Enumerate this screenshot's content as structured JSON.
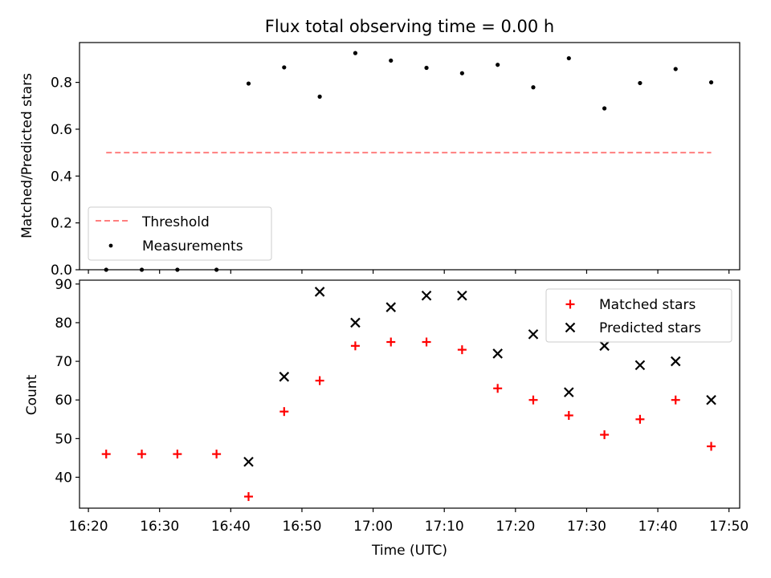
{
  "chart_data": [
    {
      "type": "scatter",
      "title": "Flux total observing time = 0.00 h",
      "xlabel": "",
      "ylabel": "Matched/Predicted stars",
      "ylim": [
        0,
        0.97
      ],
      "yticks": [
        "0.0",
        "0.2",
        "0.4",
        "0.6",
        "0.8"
      ],
      "grid": false,
      "legend_position": "lower-left",
      "threshold": {
        "name": "Threshold",
        "color": "#ff7f7f",
        "style": "dashed",
        "y": 0.5,
        "x_start": "16:22:30",
        "x_end": "17:47:30"
      },
      "series": [
        {
          "name": "Measurements",
          "color": "#000000",
          "marker": "dot",
          "points": [
            {
              "x": "16:22:30",
              "y": 0.0
            },
            {
              "x": "16:27:30",
              "y": 0.0
            },
            {
              "x": "16:32:30",
              "y": 0.0
            },
            {
              "x": "16:38:00",
              "y": 0.0
            },
            {
              "x": "16:42:30",
              "y": 0.795
            },
            {
              "x": "16:47:30",
              "y": 0.864
            },
            {
              "x": "16:52:30",
              "y": 0.739
            },
            {
              "x": "16:57:30",
              "y": 0.925
            },
            {
              "x": "17:02:30",
              "y": 0.893
            },
            {
              "x": "17:07:30",
              "y": 0.862
            },
            {
              "x": "17:12:30",
              "y": 0.839
            },
            {
              "x": "17:17:30",
              "y": 0.875
            },
            {
              "x": "17:22:30",
              "y": 0.779
            },
            {
              "x": "17:27:30",
              "y": 0.903
            },
            {
              "x": "17:32:30",
              "y": 0.689
            },
            {
              "x": "17:37:30",
              "y": 0.797
            },
            {
              "x": "17:42:30",
              "y": 0.857
            },
            {
              "x": "17:47:30",
              "y": 0.8
            }
          ]
        }
      ]
    },
    {
      "type": "scatter",
      "title": "",
      "xlabel": "Time (UTC)",
      "ylabel": "Count",
      "xlim": [
        "16:18:45",
        "17:51:30"
      ],
      "ylim": [
        32,
        91
      ],
      "xticks": [
        "16:20",
        "16:30",
        "16:40",
        "16:50",
        "17:00",
        "17:10",
        "17:20",
        "17:30",
        "17:40",
        "17:50"
      ],
      "yticks": [
        "40",
        "50",
        "60",
        "70",
        "80",
        "90"
      ],
      "grid": false,
      "legend_position": "upper-right",
      "series": [
        {
          "name": "Matched stars",
          "color": "#ff0000",
          "marker": "plus",
          "points": [
            {
              "x": "16:22:30",
              "y": 46
            },
            {
              "x": "16:27:30",
              "y": 46
            },
            {
              "x": "16:32:30",
              "y": 46
            },
            {
              "x": "16:38:00",
              "y": 46
            },
            {
              "x": "16:42:30",
              "y": 35
            },
            {
              "x": "16:47:30",
              "y": 57
            },
            {
              "x": "16:52:30",
              "y": 65
            },
            {
              "x": "16:57:30",
              "y": 74
            },
            {
              "x": "17:02:30",
              "y": 75
            },
            {
              "x": "17:07:30",
              "y": 75
            },
            {
              "x": "17:12:30",
              "y": 73
            },
            {
              "x": "17:17:30",
              "y": 63
            },
            {
              "x": "17:22:30",
              "y": 60
            },
            {
              "x": "17:27:30",
              "y": 56
            },
            {
              "x": "17:32:30",
              "y": 51
            },
            {
              "x": "17:37:30",
              "y": 55
            },
            {
              "x": "17:42:30",
              "y": 60
            },
            {
              "x": "17:47:30",
              "y": 48
            }
          ]
        },
        {
          "name": "Predicted stars",
          "color": "#000000",
          "marker": "x",
          "points": [
            {
              "x": "16:42:30",
              "y": 44
            },
            {
              "x": "16:47:30",
              "y": 66
            },
            {
              "x": "16:52:30",
              "y": 88
            },
            {
              "x": "16:57:30",
              "y": 80
            },
            {
              "x": "17:02:30",
              "y": 84
            },
            {
              "x": "17:07:30",
              "y": 87
            },
            {
              "x": "17:12:30",
              "y": 87
            },
            {
              "x": "17:17:30",
              "y": 72
            },
            {
              "x": "17:22:30",
              "y": 77
            },
            {
              "x": "17:27:30",
              "y": 62
            },
            {
              "x": "17:32:30",
              "y": 74
            },
            {
              "x": "17:37:30",
              "y": 69
            },
            {
              "x": "17:42:30",
              "y": 70
            },
            {
              "x": "17:47:30",
              "y": 60
            }
          ]
        }
      ]
    }
  ]
}
